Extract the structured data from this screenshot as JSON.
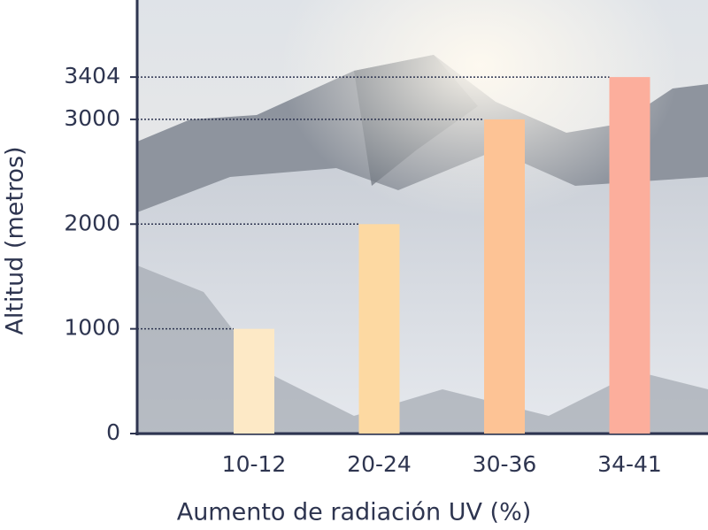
{
  "chart_data": {
    "type": "bar",
    "x_label": "Aumento de radiación UV (%)",
    "y_label": "Altitud (metros)",
    "categories": [
      "10-12",
      "20-24",
      "30-36",
      "34-41"
    ],
    "values": [
      1000,
      2000,
      3000,
      3404
    ],
    "colors": [
      "#fde9c6",
      "#fdd9a2",
      "#fdc395",
      "#fcae9c"
    ],
    "ylim": [
      0,
      4140
    ],
    "yticks": [
      0,
      1000,
      2000,
      3000,
      3404
    ]
  }
}
